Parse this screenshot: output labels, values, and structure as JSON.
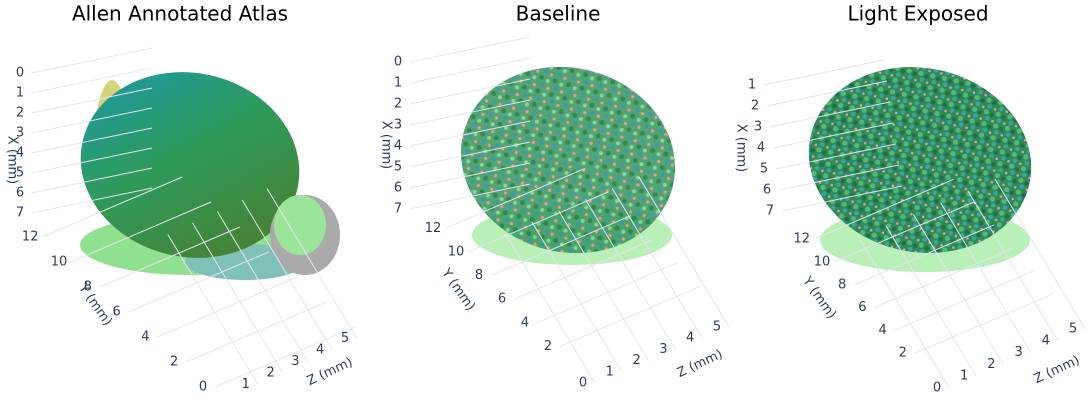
{
  "chart_data": [
    {
      "type": "scatter3d",
      "title": "Allen Annotated Atlas",
      "x_label": "X (mm)",
      "y_label": "Y (mm)",
      "z_label": "Z (mm)",
      "xlim": [
        0,
        7
      ],
      "ylim": [
        0,
        12
      ],
      "zlim": [
        0,
        5
      ],
      "xticks": [
        0,
        1,
        2,
        3,
        4,
        5,
        6,
        7
      ],
      "yticks": [
        12,
        10,
        8,
        6,
        4,
        2,
        0
      ],
      "zticks": [
        1,
        2,
        3,
        4,
        5
      ]
    },
    {
      "type": "scatter3d",
      "title": "Baseline",
      "x_label": "X (mm)",
      "y_label": "Y (mm)",
      "z_label": "Z (mm)",
      "xlim": [
        0,
        7
      ],
      "ylim": [
        0,
        12
      ],
      "zlim": [
        0,
        5
      ],
      "xticks": [
        0,
        1,
        2,
        3,
        4,
        5,
        6,
        7
      ],
      "yticks": [
        12,
        10,
        8,
        6,
        4,
        2
      ],
      "zticks": [
        0,
        1,
        2,
        3,
        4,
        5
      ]
    },
    {
      "type": "scatter3d",
      "title": "Light Exposed",
      "x_label": "X (mm)",
      "y_label": "Y (mm)",
      "z_label": "Z (mm)",
      "xlim": [
        0,
        7
      ],
      "ylim": [
        0,
        12
      ],
      "zlim": [
        0,
        5
      ],
      "xticks": [
        1,
        2,
        3,
        4,
        5,
        6,
        7
      ],
      "yticks": [
        12,
        10,
        8,
        6,
        4,
        2
      ],
      "zticks": [
        0,
        1,
        2,
        3,
        4,
        5
      ]
    }
  ]
}
